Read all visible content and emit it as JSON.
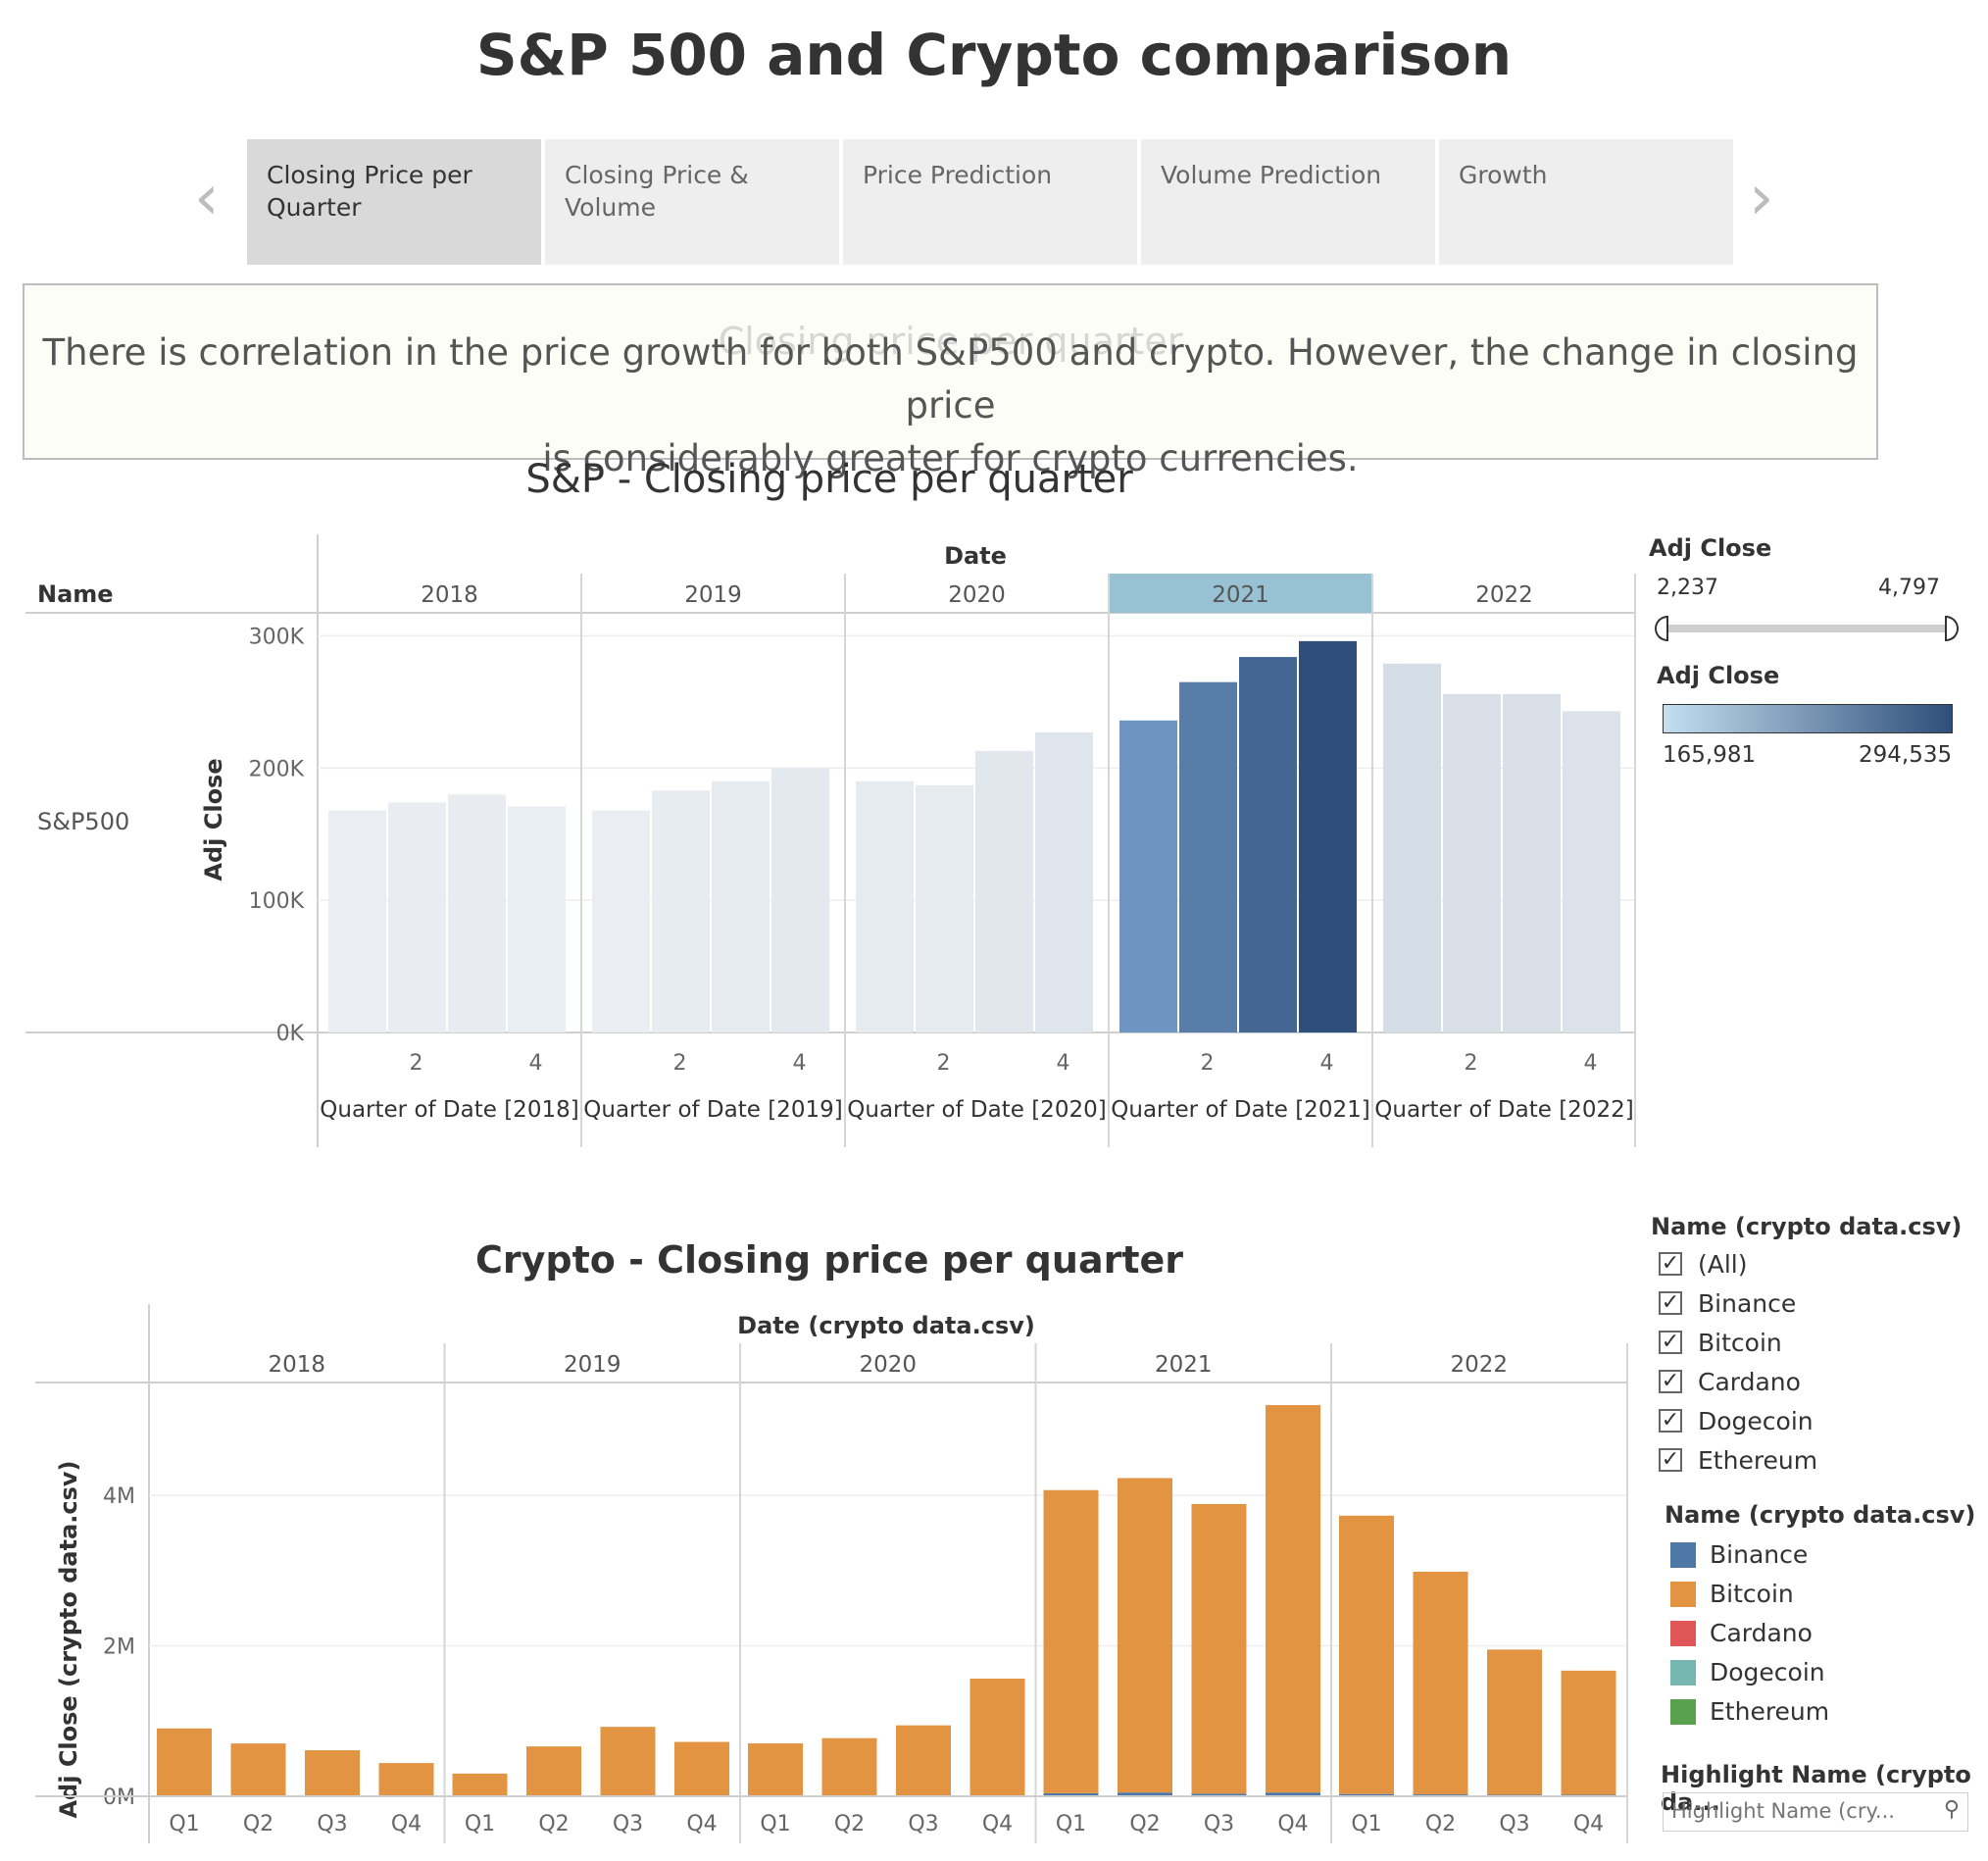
{
  "title": "S&P 500 and Crypto comparison",
  "tabs": [
    {
      "label": "Closing Price per Quarter"
    },
    {
      "label": "Closing Price & Volume"
    },
    {
      "label": "Price Prediction"
    },
    {
      "label": "Volume Prediction"
    },
    {
      "label": "Growth"
    }
  ],
  "nav": {
    "prev": "‹",
    "next": "›"
  },
  "caption": {
    "ghost": "Closing price per quarter",
    "line1": "There is correlation in the price growth for both S&P500 and crypto. However, the change in closing price",
    "line2": "is considerably greater for crypto currencies."
  },
  "sp_legend": {
    "filter_title": "Adj Close",
    "filter_min": "2,237",
    "filter_max": "4,797",
    "color_title": "Adj Close",
    "color_min": "165,981",
    "color_max": "294,535",
    "color_low": "#c3dff0",
    "color_high": "#2f4e7a"
  },
  "crypto_legend": {
    "filter_title": "Name (crypto data.csv)",
    "filter_items": [
      "(All)",
      "Binance",
      "Bitcoin",
      "Cardano",
      "Dogecoin",
      "Ethereum"
    ],
    "color_title": "Name (crypto data.csv)",
    "color_items": [
      {
        "name": "Binance",
        "color": "#4e79a7"
      },
      {
        "name": "Bitcoin",
        "color": "#e39443"
      },
      {
        "name": "Cardano",
        "color": "#e15759"
      },
      {
        "name": "Dogecoin",
        "color": "#76b7b2"
      },
      {
        "name": "Ethereum",
        "color": "#59a14f"
      }
    ],
    "highlight_title": "Highlight Name (crypto da...",
    "highlight_placeholder": "Highlight Name (cry..."
  },
  "chart_data": [
    {
      "type": "bar",
      "title": "S&P - Closing price per quarter",
      "row_header": "Name",
      "row_label": "S&P500",
      "column_header": "Date",
      "years": [
        "2018",
        "2019",
        "2020",
        "2021",
        "2022"
      ],
      "highlighted_year": "2021",
      "x_tick_labels": [
        "2",
        "4"
      ],
      "x_axis_labels": [
        "Quarter of Date [2018]",
        "Quarter of Date [2019]",
        "Quarter of Date [2020]",
        "Quarter of Date [2021]",
        "Quarter of Date [2022]"
      ],
      "ylabel": "Adj Close",
      "ylim": [
        0,
        310000
      ],
      "y_ticks": [
        0,
        100000,
        200000,
        300000
      ],
      "y_tick_labels": [
        "0K",
        "100K",
        "200K",
        "300K"
      ],
      "series": [
        {
          "name": "S&P500",
          "values": [
            [
              168000,
              174000,
              180000,
              171000
            ],
            [
              168000,
              183000,
              190000,
              200000
            ],
            [
              190000,
              187000,
              213000,
              227000
            ],
            [
              236000,
              265000,
              284000,
              296000
            ],
            [
              279000,
              256000,
              256000,
              243000
            ]
          ]
        }
      ]
    },
    {
      "type": "bar",
      "stacked": true,
      "title": "Crypto - Closing price per quarter",
      "column_header": "Date (crypto data.csv)",
      "years": [
        "2018",
        "2019",
        "2020",
        "2021",
        "2022"
      ],
      "quarters": [
        "Q1",
        "Q2",
        "Q3",
        "Q4"
      ],
      "ylabel": "Adj Close (crypto data.csv)",
      "ylim": [
        0,
        5500000
      ],
      "y_ticks": [
        0,
        2000000,
        4000000
      ],
      "y_tick_labels": [
        "0M",
        "2M",
        "4M"
      ],
      "series": [
        {
          "name": "Bitcoin",
          "values": [
            [
              900000,
              700000,
              610000,
              440000
            ],
            [
              300000,
              660000,
              920000,
              720000
            ],
            [
              700000,
              770000,
              940000,
              1560000
            ],
            [
              4030000,
              4180000,
              3850000,
              5150000
            ],
            [
              3700000,
              2960000,
              1930000,
              1650000
            ]
          ]
        },
        {
          "name": "Binance",
          "values": [
            [
              2000,
              2000,
              2000,
              2000
            ],
            [
              2000,
              3000,
              3000,
              3000
            ],
            [
              3000,
              3000,
              3000,
              4000
            ],
            [
              40000,
              50000,
              35000,
              50000
            ],
            [
              30000,
              25000,
              20000,
              20000
            ]
          ]
        }
      ]
    }
  ]
}
